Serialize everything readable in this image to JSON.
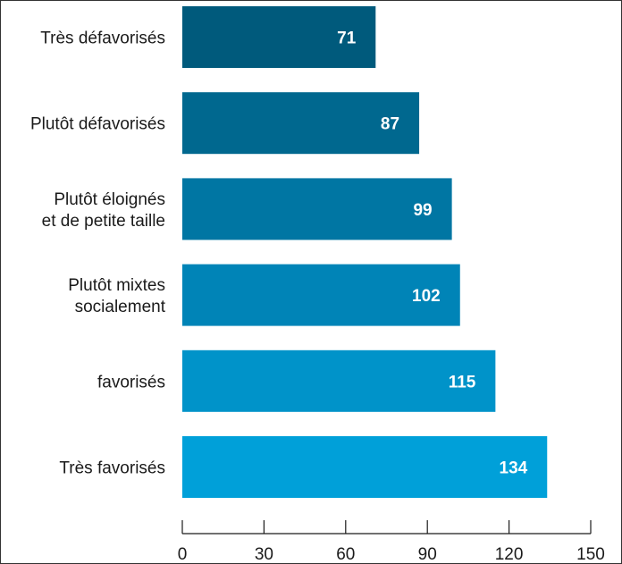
{
  "chart_data": {
    "type": "bar",
    "orientation": "horizontal",
    "title": "",
    "xlabel": "",
    "ylabel": "",
    "categories": [
      [
        "Très défavorisés"
      ],
      [
        "Plutôt défavorisés"
      ],
      [
        "Plutôt éloignés",
        "et de petite taille"
      ],
      [
        "Plutôt mixtes",
        "socialement"
      ],
      [
        "favorisés"
      ],
      [
        "Très favorisés"
      ]
    ],
    "values": [
      71,
      87,
      99,
      102,
      115,
      134
    ],
    "value_labels": [
      "71",
      "87",
      "99",
      "102",
      "115",
      "134"
    ],
    "xlim": [
      0,
      150
    ],
    "xticks": [
      0,
      30,
      60,
      90,
      120,
      150
    ],
    "xtick_labels": [
      "0",
      "30",
      "60",
      "90",
      "120",
      "150"
    ],
    "grid": false,
    "bar_colors": [
      "#005a7c",
      "#00688f",
      "#0076a3",
      "#0084b7",
      "#0093c9",
      "#00a0d9"
    ]
  }
}
